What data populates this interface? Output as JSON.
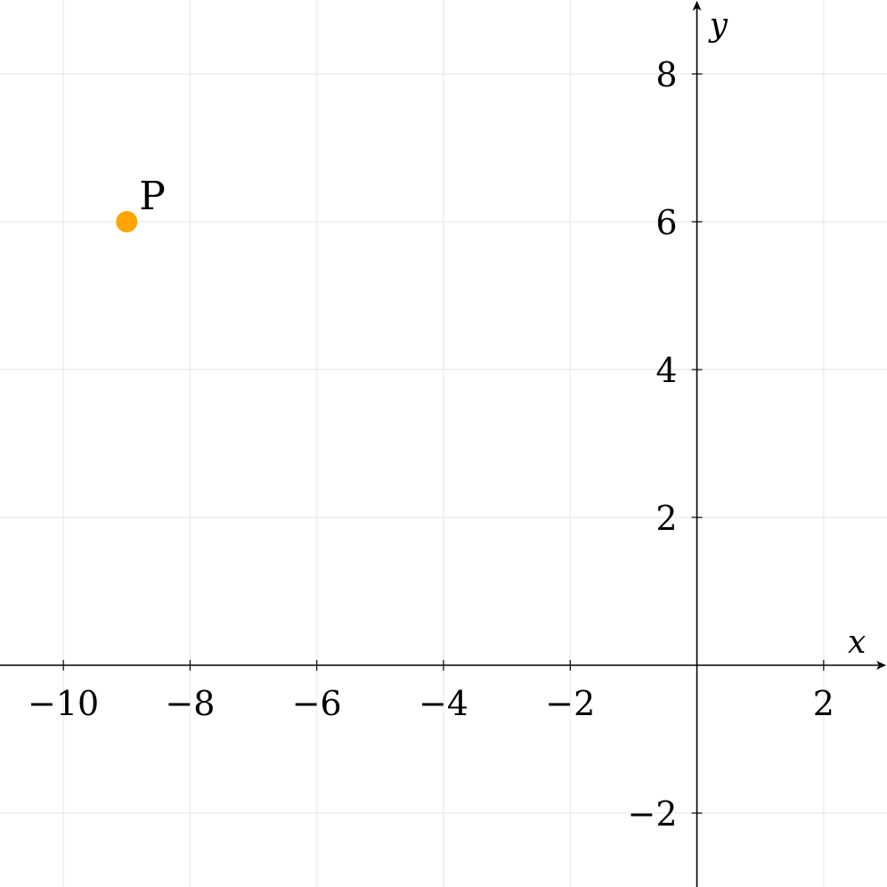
{
  "chart_data": {
    "type": "scatter",
    "title": "",
    "xlabel": "x",
    "ylabel": "y",
    "xlim": [
      -11,
      3
    ],
    "ylim": [
      -3,
      9
    ],
    "xticks": [
      -10,
      -8,
      -6,
      -4,
      -2,
      2
    ],
    "xtick_labels": [
      "−10",
      "−8",
      "−6",
      "−4",
      "−2",
      "2"
    ],
    "yticks": [
      -2,
      2,
      4,
      6,
      8
    ],
    "ytick_labels": [
      "−2",
      "2",
      "4",
      "6",
      "8"
    ],
    "grid": true,
    "points": [
      {
        "label": "P",
        "x": -9,
        "y": 6,
        "color": "#ffa500"
      }
    ]
  },
  "colors": {
    "grid": "#e6e6e6",
    "axis": "#000000",
    "point": "#ffa500"
  }
}
